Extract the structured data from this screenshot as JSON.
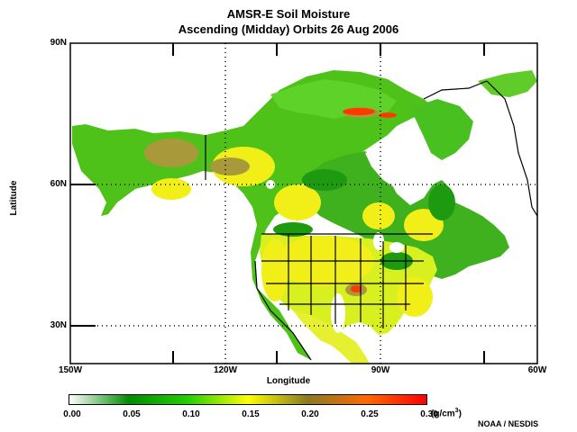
{
  "title": "AMSR-E Soil Moisture",
  "subtitle": "Ascending (Midday) Orbits  26 Aug 2006",
  "axes": {
    "xlabel": "Longitude",
    "ylabel": "Latitude",
    "lon_ticks": [
      "150W",
      "120W",
      "90W",
      "60W"
    ],
    "lat_ticks": [
      "90N",
      "60N",
      "30N"
    ],
    "lon_range": [
      -150,
      -60
    ],
    "lat_range": [
      20,
      90
    ],
    "grid": "dotted"
  },
  "colorbar": {
    "ticks": [
      "0.00",
      "0.05",
      "0.10",
      "0.15",
      "0.20",
      "0.25",
      "0.30"
    ],
    "unit_prefix": "(g/cm",
    "unit_sup": "3",
    "unit_suffix": ")",
    "range": [
      0.0,
      0.3
    ],
    "colors": [
      "#ffffff",
      "#008c00",
      "#22d000",
      "#ffff00",
      "#8a7a20",
      "#ff6a00",
      "#ff0000"
    ]
  },
  "credit": "NOAA / NESDIS",
  "legend": {
    "items": [
      "0.00",
      "0.05",
      "0.10",
      "0.15",
      "0.20",
      "0.25",
      "0.30"
    ]
  }
}
